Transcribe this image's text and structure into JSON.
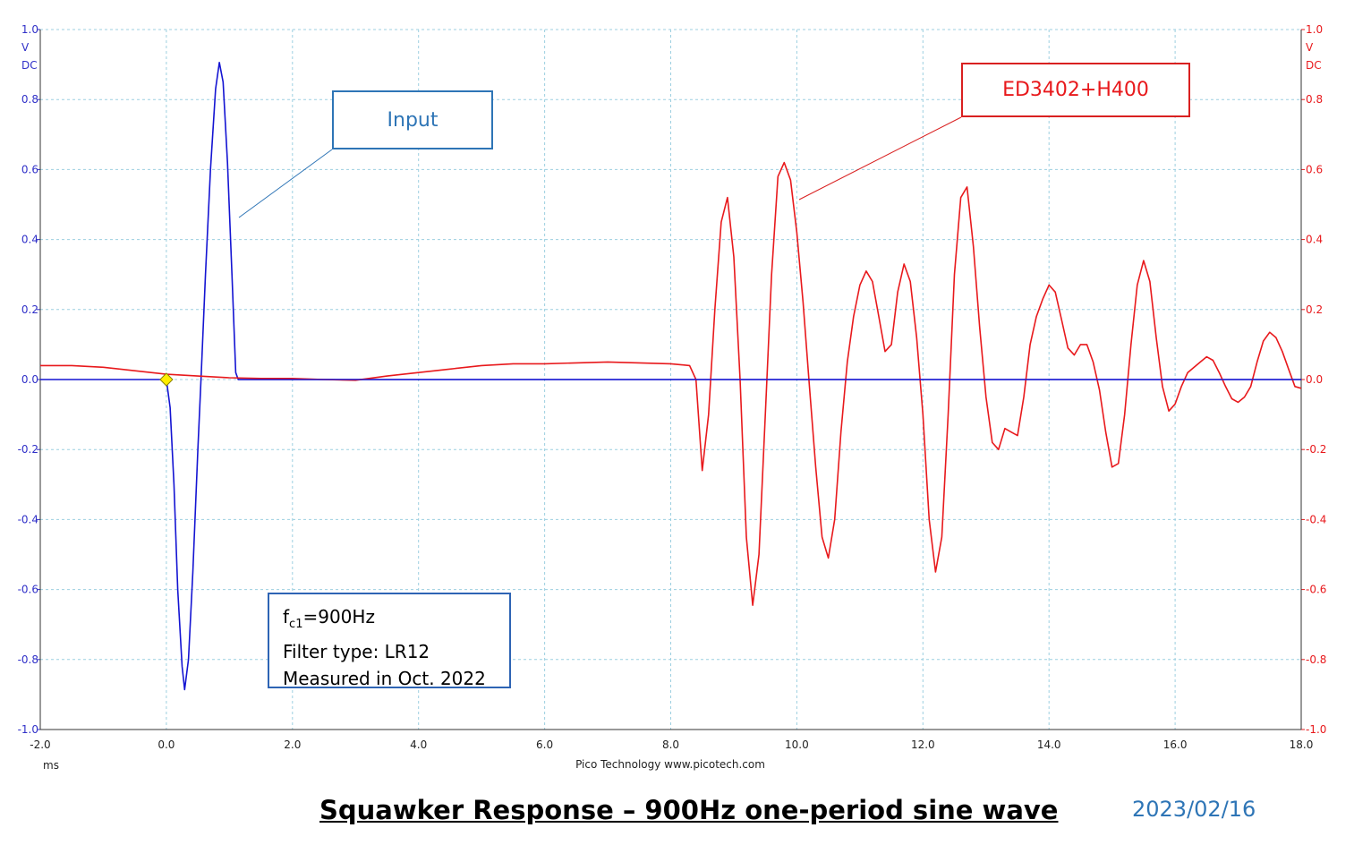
{
  "chart_data": {
    "type": "line",
    "title": "Squawker Response – 900Hz one-period sine wave",
    "date": "2023/02/16",
    "xlim": [
      -2.0,
      18.0
    ],
    "x_ticks": [
      "-2.0",
      "0.0",
      "2.0",
      "4.0",
      "6.0",
      "8.0",
      "10.0",
      "12.0",
      "14.0",
      "16.0",
      "18.0"
    ],
    "x_unit": "ms",
    "ylim": [
      -1.0,
      1.0
    ],
    "y_ticks": [
      "-1.0",
      "-0.8",
      "-0.6",
      "-0.4",
      "-0.2",
      "0.0",
      "0.2",
      "0.4",
      "0.6",
      "0.8",
      "1.0"
    ],
    "y_unit_left": [
      "V",
      "DC"
    ],
    "y_unit_right": [
      "V",
      "DC"
    ],
    "grid": true,
    "footer": "Pico Technology   www.picotech.com",
    "series": [
      {
        "name": "Input",
        "color": "#1414D2",
        "points": [
          [
            -2.0,
            0
          ],
          [
            0.0,
            0
          ],
          [
            0.06,
            -0.08
          ],
          [
            0.12,
            -0.3
          ],
          [
            0.18,
            -0.6
          ],
          [
            0.25,
            -0.82
          ],
          [
            0.29,
            -0.886
          ],
          [
            0.35,
            -0.8
          ],
          [
            0.42,
            -0.55
          ],
          [
            0.5,
            -0.2
          ],
          [
            0.55,
            0.0
          ],
          [
            0.62,
            0.3
          ],
          [
            0.7,
            0.6
          ],
          [
            0.78,
            0.83
          ],
          [
            0.84,
            0.906
          ],
          [
            0.9,
            0.85
          ],
          [
            0.97,
            0.62
          ],
          [
            1.04,
            0.3
          ],
          [
            1.1,
            0.02
          ],
          [
            1.14,
            0
          ],
          [
            18.0,
            0
          ]
        ]
      },
      {
        "name": "ED3402+H400",
        "color": "#E8191C",
        "points": [
          [
            -2.0,
            0.04
          ],
          [
            -1.5,
            0.04
          ],
          [
            -1.0,
            0.035
          ],
          [
            -0.5,
            0.025
          ],
          [
            0.0,
            0.015
          ],
          [
            0.5,
            0.01
          ],
          [
            1.0,
            0.005
          ],
          [
            1.5,
            0.003
          ],
          [
            2.0,
            0.003
          ],
          [
            2.5,
            0.0
          ],
          [
            3.0,
            -0.002
          ],
          [
            3.5,
            0.01
          ],
          [
            4.0,
            0.02
          ],
          [
            4.5,
            0.03
          ],
          [
            5.0,
            0.04
          ],
          [
            5.5,
            0.045
          ],
          [
            6.0,
            0.045
          ],
          [
            7.0,
            0.05
          ],
          [
            8.0,
            0.045
          ],
          [
            8.3,
            0.04
          ],
          [
            8.4,
            0.0
          ],
          [
            8.5,
            -0.26
          ],
          [
            8.6,
            -0.1
          ],
          [
            8.7,
            0.2
          ],
          [
            8.8,
            0.45
          ],
          [
            8.9,
            0.52
          ],
          [
            9.0,
            0.35
          ],
          [
            9.1,
            0.0
          ],
          [
            9.2,
            -0.45
          ],
          [
            9.3,
            -0.645
          ],
          [
            9.4,
            -0.5
          ],
          [
            9.5,
            -0.1
          ],
          [
            9.6,
            0.3
          ],
          [
            9.7,
            0.58
          ],
          [
            9.8,
            0.62
          ],
          [
            9.9,
            0.57
          ],
          [
            10.0,
            0.42
          ],
          [
            10.1,
            0.22
          ],
          [
            10.2,
            -0.02
          ],
          [
            10.3,
            -0.25
          ],
          [
            10.4,
            -0.45
          ],
          [
            10.5,
            -0.51
          ],
          [
            10.6,
            -0.4
          ],
          [
            10.7,
            -0.15
          ],
          [
            10.8,
            0.05
          ],
          [
            10.9,
            0.18
          ],
          [
            11.0,
            0.27
          ],
          [
            11.1,
            0.31
          ],
          [
            11.2,
            0.28
          ],
          [
            11.3,
            0.18
          ],
          [
            11.4,
            0.08
          ],
          [
            11.5,
            0.1
          ],
          [
            11.6,
            0.25
          ],
          [
            11.7,
            0.33
          ],
          [
            11.8,
            0.28
          ],
          [
            11.9,
            0.12
          ],
          [
            12.0,
            -0.1
          ],
          [
            12.1,
            -0.4
          ],
          [
            12.2,
            -0.55
          ],
          [
            12.3,
            -0.45
          ],
          [
            12.4,
            -0.1
          ],
          [
            12.5,
            0.3
          ],
          [
            12.6,
            0.52
          ],
          [
            12.7,
            0.55
          ],
          [
            12.8,
            0.38
          ],
          [
            12.9,
            0.15
          ],
          [
            13.0,
            -0.05
          ],
          [
            13.1,
            -0.18
          ],
          [
            13.2,
            -0.2
          ],
          [
            13.3,
            -0.14
          ],
          [
            13.4,
            -0.15
          ],
          [
            13.5,
            -0.16
          ],
          [
            13.6,
            -0.05
          ],
          [
            13.7,
            0.1
          ],
          [
            13.8,
            0.18
          ],
          [
            13.9,
            0.23
          ],
          [
            14.0,
            0.27
          ],
          [
            14.1,
            0.25
          ],
          [
            14.2,
            0.17
          ],
          [
            14.3,
            0.09
          ],
          [
            14.4,
            0.07
          ],
          [
            14.5,
            0.1
          ],
          [
            14.6,
            0.1
          ],
          [
            14.7,
            0.05
          ],
          [
            14.8,
            -0.03
          ],
          [
            14.9,
            -0.15
          ],
          [
            15.0,
            -0.25
          ],
          [
            15.1,
            -0.24
          ],
          [
            15.2,
            -0.1
          ],
          [
            15.3,
            0.1
          ],
          [
            15.4,
            0.27
          ],
          [
            15.5,
            0.34
          ],
          [
            15.6,
            0.28
          ],
          [
            15.7,
            0.12
          ],
          [
            15.8,
            -0.02
          ],
          [
            15.9,
            -0.09
          ],
          [
            16.0,
            -0.07
          ],
          [
            16.1,
            -0.02
          ],
          [
            16.2,
            0.02
          ],
          [
            16.4,
            0.05
          ],
          [
            16.5,
            0.065
          ],
          [
            16.6,
            0.055
          ],
          [
            16.7,
            0.02
          ],
          [
            16.8,
            -0.02
          ],
          [
            16.9,
            -0.055
          ],
          [
            17.0,
            -0.065
          ],
          [
            17.1,
            -0.05
          ],
          [
            17.2,
            -0.02
          ],
          [
            17.3,
            0.05
          ],
          [
            17.4,
            0.11
          ],
          [
            17.5,
            0.135
          ],
          [
            17.6,
            0.12
          ],
          [
            17.7,
            0.08
          ],
          [
            17.8,
            0.03
          ],
          [
            17.9,
            -0.02
          ],
          [
            18.0,
            -0.025
          ]
        ]
      }
    ],
    "marker": {
      "x": 0.0,
      "y": 0.0,
      "color": "#FFEE00"
    }
  },
  "callouts": {
    "input_label": "Input",
    "ed_label": "ED3402+H400",
    "info": {
      "fc_prefix": "f",
      "fc_sub": "c1",
      "fc_value": "=900Hz",
      "filter": "Filter type: LR12",
      "measured": "Measured in Oct. 2022"
    }
  }
}
